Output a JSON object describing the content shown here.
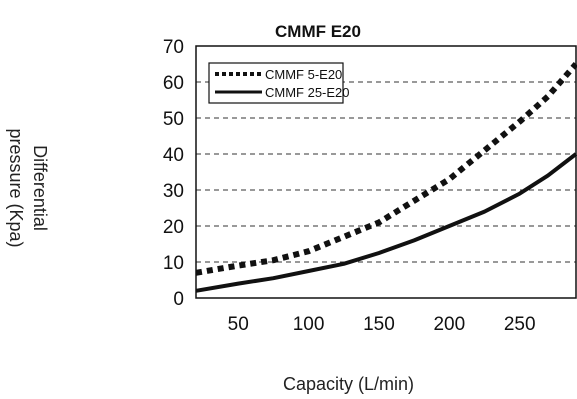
{
  "chart_data": {
    "type": "line",
    "title": "CMMF E20",
    "ylabel_line1": "Differential",
    "ylabel_line2": "pressure (Kpa)",
    "xlabel": "Capacity (L/min)",
    "xlim": [
      20,
      290
    ],
    "ylim": [
      0,
      70
    ],
    "x_ticks": [
      50,
      100,
      150,
      200,
      250
    ],
    "y_ticks": [
      0,
      10,
      20,
      30,
      40,
      50,
      60,
      70
    ],
    "grid": "horizontal-dashed",
    "legend_position": "top-left",
    "series": [
      {
        "name": "CMMF 5-E20",
        "style": "dotted",
        "x": [
          20,
          50,
          75,
          100,
          125,
          150,
          175,
          200,
          225,
          250,
          270,
          290
        ],
        "y": [
          7,
          9,
          10.5,
          13,
          17,
          21,
          27,
          33,
          41,
          49,
          56,
          65
        ]
      },
      {
        "name": "CMMF 25-E20",
        "style": "solid",
        "x": [
          20,
          50,
          75,
          100,
          125,
          150,
          175,
          200,
          225,
          250,
          270,
          290
        ],
        "y": [
          2,
          4,
          5.5,
          7.5,
          9.5,
          12.5,
          16,
          20,
          24,
          29,
          34,
          40
        ]
      }
    ]
  }
}
